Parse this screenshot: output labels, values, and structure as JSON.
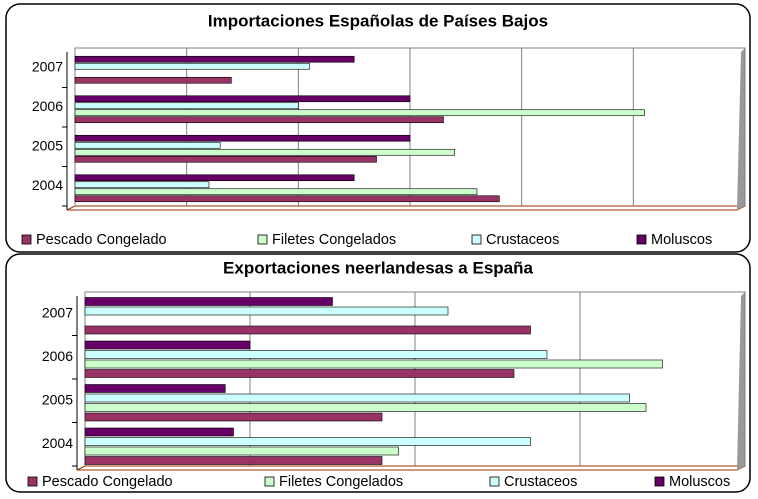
{
  "chart_data": [
    {
      "type": "bar",
      "orientation": "horizontal",
      "title": "Importaciones Españolas de Países Bajos",
      "categories": [
        "2004",
        "2005",
        "2006",
        "2007"
      ],
      "series": [
        {
          "name": "Pescado Congelado",
          "color": "#993366",
          "values": [
            3.8,
            2.7,
            3.3,
            1.4
          ]
        },
        {
          "name": "Filetes Congelados",
          "color": "#ccffcc",
          "values": [
            3.6,
            3.4,
            5.1,
            0
          ]
        },
        {
          "name": "Crustaceos",
          "color": "#ccffff",
          "values": [
            1.2,
            1.3,
            2.0,
            2.1
          ]
        },
        {
          "name": "Moluscos",
          "color": "#660066",
          "values": [
            2.5,
            3.0,
            3.0,
            2.5
          ]
        }
      ],
      "xlim": [
        0,
        6
      ],
      "xticks": [
        0,
        1,
        2,
        3,
        4,
        5,
        6
      ],
      "grid": true,
      "legend": "bottom"
    },
    {
      "type": "bar",
      "orientation": "horizontal",
      "title": "Exportaciones neerlandesas a España",
      "categories": [
        "2004",
        "2005",
        "2006",
        "2007"
      ],
      "series": [
        {
          "name": "Pescado Congelado",
          "color": "#993366",
          "values": [
            1.8,
            1.8,
            2.6,
            2.7
          ]
        },
        {
          "name": "Filetes Congelados",
          "color": "#ccffcc",
          "values": [
            1.9,
            3.4,
            3.5,
            0
          ]
        },
        {
          "name": "Crustaceos",
          "color": "#ccffff",
          "values": [
            2.7,
            3.3,
            2.8,
            2.2
          ]
        },
        {
          "name": "Moluscos",
          "color": "#660066",
          "values": [
            0.9,
            0.85,
            1.0,
            1.5
          ]
        }
      ],
      "xlim": [
        0,
        4
      ],
      "xticks": [
        0,
        1,
        2,
        3,
        4
      ],
      "grid": true,
      "legend": "bottom"
    }
  ]
}
